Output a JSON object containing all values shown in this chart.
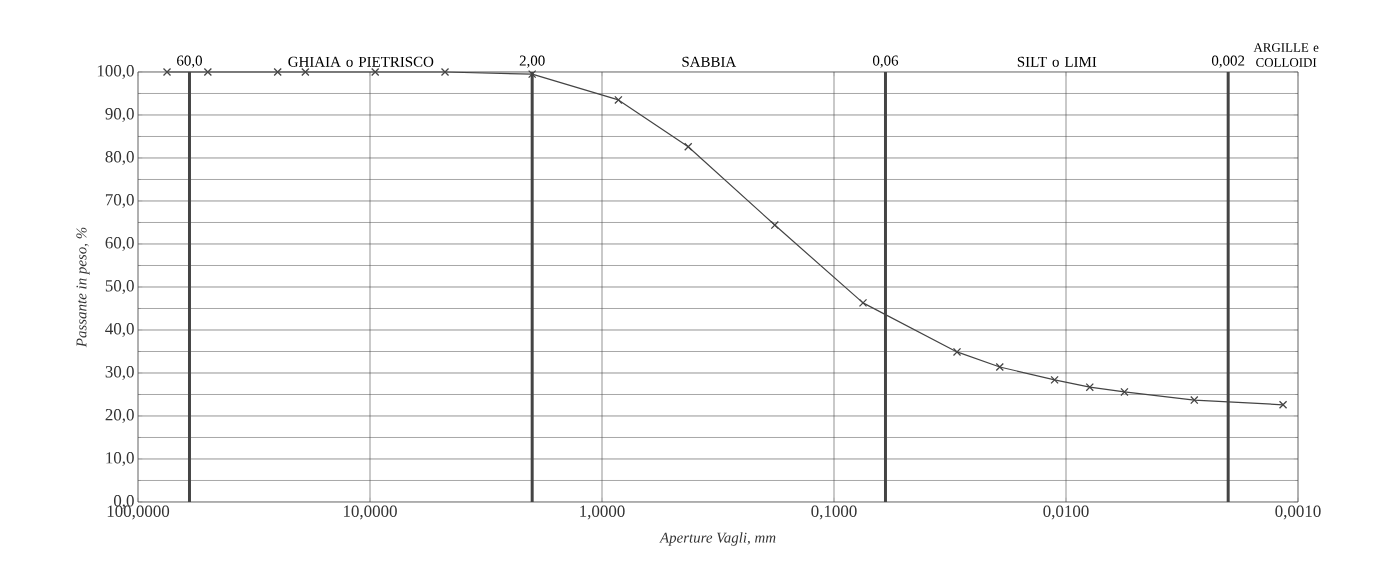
{
  "chart_data": {
    "type": "line",
    "xlabel": "Aperture Vagli, mm",
    "ylabel": "Passante in peso, %",
    "x": [
      75,
      50,
      25,
      19,
      9.5,
      4.75,
      2.0,
      0.85,
      0.425,
      0.18,
      0.075,
      0.0295,
      0.0193,
      0.0112,
      0.0079,
      0.0056,
      0.0028,
      0.00116
    ],
    "series": [
      {
        "color": "#444444",
        "values": [
          100,
          100,
          100,
          100,
          100,
          100,
          99.5,
          93.5,
          82.6,
          64.4,
          46.3,
          34.9,
          31.4,
          28.4,
          26.7,
          25.6,
          23.7,
          22.6
        ]
      }
    ],
    "log": "x",
    "xlim": [
      100,
      0.001
    ],
    "ylim": [
      0,
      100
    ],
    "xticks": [
      {
        "value": 100,
        "label": "100,0000"
      },
      {
        "value": 10,
        "label": "10,0000"
      },
      {
        "value": 1,
        "label": "1,0000"
      },
      {
        "value": 0.1,
        "label": "0,1000"
      },
      {
        "value": 0.01,
        "label": "0,0100"
      },
      {
        "value": 0.001,
        "label": "0,0010"
      }
    ],
    "yticks": [
      {
        "value": 0,
        "label": "0,0"
      },
      {
        "value": 10,
        "label": "10,0"
      },
      {
        "value": 20,
        "label": "20,0"
      },
      {
        "value": 30,
        "label": "30,0"
      },
      {
        "value": 40,
        "label": "40,0"
      },
      {
        "value": 50,
        "label": "50,0"
      },
      {
        "value": 60,
        "label": "60,0"
      },
      {
        "value": 70,
        "label": "70,0"
      },
      {
        "value": 80,
        "label": "80,0"
      },
      {
        "value": 90,
        "label": "90,0"
      },
      {
        "value": 100,
        "label": "100,0"
      }
    ],
    "ref_lines": [
      {
        "axis": "x",
        "value": 60,
        "label": "60,0",
        "color": "#444444"
      },
      {
        "axis": "x",
        "value": 2,
        "label": "2,00",
        "color": "#444444"
      },
      {
        "axis": "x",
        "value": 0.06,
        "label": "0,06",
        "color": "#444444"
      },
      {
        "axis": "x",
        "value": 0.002,
        "label": "0,002",
        "color": "#444444"
      }
    ],
    "annotations": [
      "GHIAIA o PIETRISCO",
      "SABBIA",
      "SILT o LIMI",
      "ARGILLE e COLLOIDI"
    ],
    "grid": true,
    "marker": "cross",
    "line_style": "solid"
  }
}
